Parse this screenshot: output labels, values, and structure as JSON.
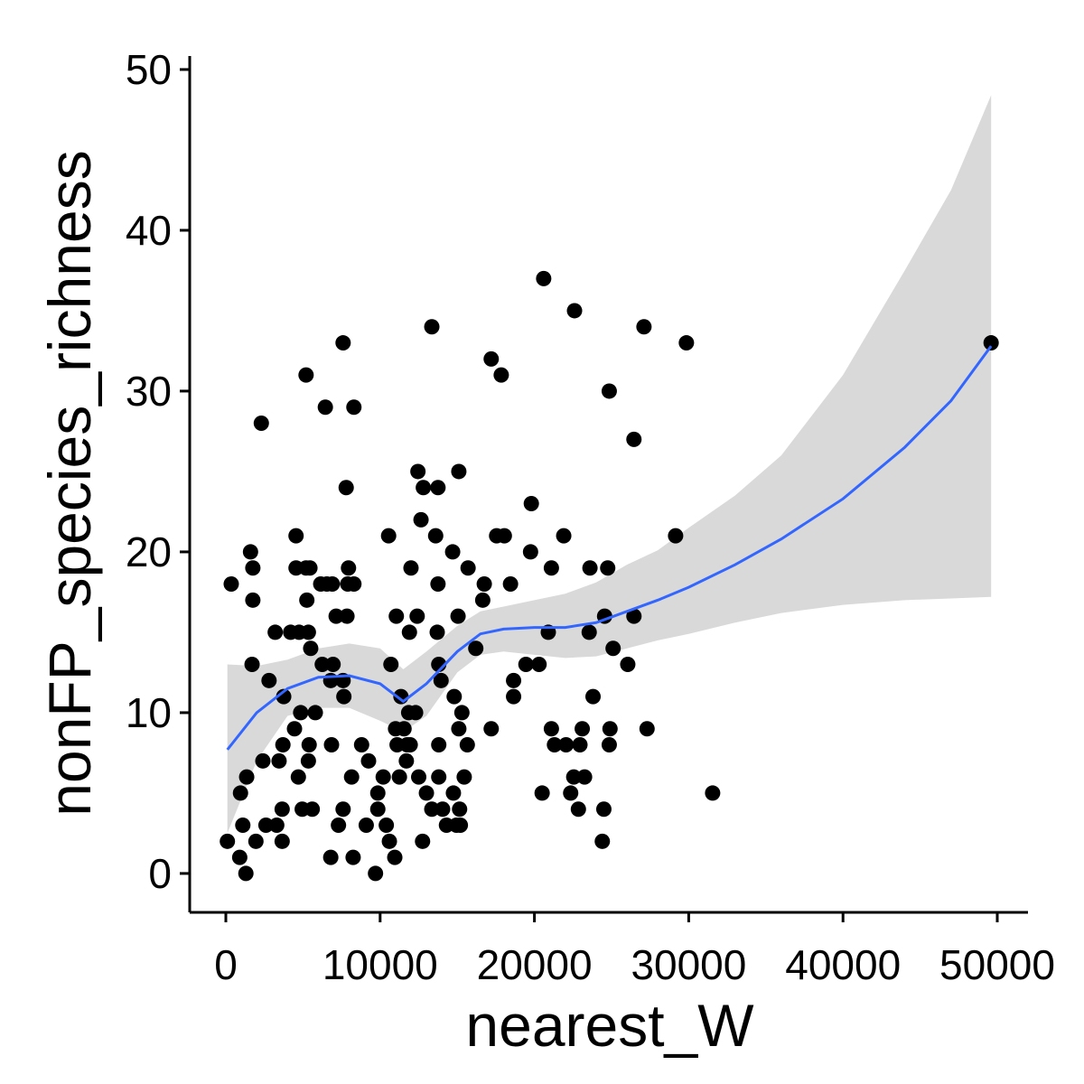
{
  "chart_data": {
    "type": "scatter",
    "x_label": "nearest_W",
    "y_label": "nonFP_species_richness",
    "xlim": [
      -2342,
      51990
    ],
    "ylim": [
      -2.42,
      50.84
    ],
    "xticks": [
      0,
      10000,
      20000,
      30000,
      40000,
      50000
    ],
    "yticks": [
      0,
      10,
      20,
      30,
      40,
      50
    ],
    "color": "#000000",
    "x": [
      100,
      350,
      900,
      950,
      1100,
      1300,
      1350,
      1600,
      1700,
      1750,
      1750,
      1950,
      2300,
      2400,
      2600,
      2800,
      3200,
      3300,
      3450,
      3650,
      3650,
      3700,
      3750,
      4200,
      4450,
      4550,
      4550,
      4700,
      4750,
      4850,
      4950,
      5200,
      5200,
      5250,
      5350,
      5350,
      5400,
      5450,
      5500,
      5600,
      5800,
      6150,
      6250,
      6450,
      6550,
      6800,
      6800,
      6850,
      6900,
      6950,
      7150,
      7300,
      7600,
      7600,
      7600,
      7650,
      7800,
      7850,
      7900,
      7950,
      8150,
      8250,
      8300,
      8300,
      8800,
      9100,
      9250,
      9700,
      9850,
      9850,
      10200,
      10400,
      10550,
      10600,
      10700,
      10950,
      11050,
      11000,
      11100,
      11250,
      11350,
      11550,
      11700,
      11750,
      11850,
      11900,
      11950,
      12000,
      12300,
      12450,
      12400,
      12500,
      12650,
      12750,
      12800,
      13000,
      13350,
      13350,
      13600,
      13700,
      13750,
      13750,
      13800,
      13800,
      13800,
      13950,
      14050,
      14300,
      14700,
      14750,
      14800,
      14950,
      15050,
      15100,
      15100,
      15150,
      15200,
      15300,
      15450,
      15650,
      15700,
      16200,
      16650,
      16750,
      17200,
      17200,
      17550,
      17850,
      18050,
      18450,
      18650,
      18650,
      19450,
      19750,
      19800,
      20300,
      20500,
      20600,
      20900,
      21100,
      21100,
      21300,
      21900,
      22050,
      22350,
      22600,
      22550,
      22850,
      22950,
      23100,
      23250,
      23550,
      23600,
      23800,
      24400,
      24500,
      24550,
      24750,
      24850,
      24850,
      24900,
      25100,
      26050,
      26450,
      26450,
      27100,
      27300,
      29150,
      29850,
      31550,
      49600
    ],
    "values": [
      2,
      18,
      1,
      5,
      3,
      0,
      6,
      20,
      13,
      19,
      17,
      2,
      28,
      7,
      3,
      12,
      15,
      3,
      7,
      4,
      2,
      8,
      11,
      15,
      9,
      21,
      19,
      6,
      15,
      10,
      4,
      31,
      19,
      17,
      15,
      7,
      8,
      19,
      14,
      4,
      10,
      18,
      13,
      29,
      18,
      12,
      1,
      8,
      18,
      13,
      16,
      3,
      33,
      4,
      12,
      11,
      24,
      16,
      18,
      19,
      6,
      1,
      29,
      18,
      8,
      3,
      7,
      0,
      5,
      4,
      6,
      3,
      21,
      2,
      13,
      1,
      16,
      9,
      8,
      6,
      11,
      9,
      7,
      8,
      10,
      15,
      8,
      19,
      10,
      25,
      16,
      6,
      22,
      2,
      24,
      5,
      34,
      4,
      21,
      15,
      18,
      24,
      13,
      8,
      6,
      12,
      4,
      3,
      20,
      5,
      11,
      3,
      16,
      25,
      9,
      4,
      3,
      10,
      6,
      8,
      19,
      14,
      17,
      18,
      32,
      9,
      21,
      31,
      21,
      18,
      12,
      11,
      13,
      20,
      23,
      13,
      5,
      37,
      15,
      19,
      9,
      8,
      21,
      8,
      5,
      35,
      6,
      4,
      8,
      9,
      6,
      15,
      19,
      11,
      2,
      4,
      16,
      19,
      8,
      30,
      9,
      14,
      13,
      16,
      27,
      34,
      9,
      21,
      33,
      5,
      33
    ],
    "smooth": {
      "color": "#3366ff",
      "band_color": "#d9d9d9",
      "x": [
        100,
        2000,
        4000,
        6000,
        8000,
        10000,
        11500,
        13000,
        15000,
        16500,
        18000,
        20000,
        22000,
        24000,
        26000,
        28000,
        30000,
        33000,
        36000,
        40000,
        44000,
        47000,
        49600
      ],
      "y": [
        7.7,
        10.0,
        11.5,
        12.2,
        12.3,
        11.8,
        10.7,
        11.8,
        13.8,
        14.9,
        15.2,
        15.3,
        15.3,
        15.6,
        16.3,
        17.0,
        17.8,
        19.2,
        20.8,
        23.3,
        26.5,
        29.4,
        32.8
      ],
      "ymin": [
        2.5,
        7.0,
        9.8,
        10.3,
        10.3,
        9.5,
        8.8,
        9.8,
        12.5,
        13.6,
        13.8,
        13.6,
        13.4,
        13.5,
        14.0,
        14.5,
        14.9,
        15.6,
        16.2,
        16.7,
        17.0,
        17.1,
        17.2
      ],
      "ymax": [
        13.0,
        12.9,
        13.3,
        14.0,
        14.3,
        14.0,
        12.7,
        13.8,
        15.4,
        16.3,
        16.6,
        17.0,
        17.4,
        18.1,
        19.2,
        20.1,
        21.5,
        23.5,
        26.0,
        31.0,
        37.5,
        42.5,
        48.4
      ]
    }
  }
}
